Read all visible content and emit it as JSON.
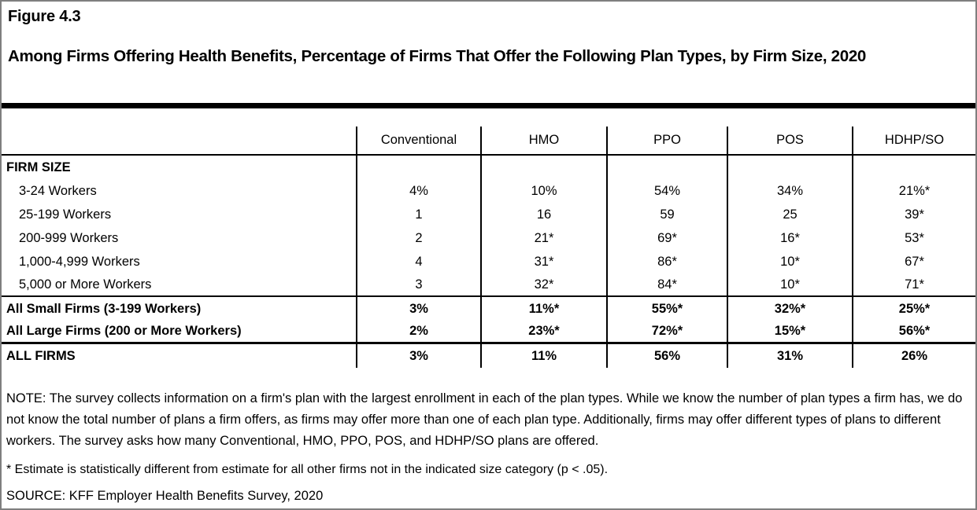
{
  "figure": {
    "number": "Figure 4.3",
    "title": "Among Firms Offering Health Benefits, Percentage of Firms That Offer the Following Plan Types, by Firm Size, 2020"
  },
  "table": {
    "columns": [
      "Conventional",
      "HMO",
      "PPO",
      "POS",
      "HDHP/SO"
    ],
    "section_header": "FIRM SIZE",
    "rows": [
      {
        "label": "3-24 Workers",
        "values": [
          "4%",
          "10%",
          "54%",
          "34%",
          "21%*"
        ]
      },
      {
        "label": "25-199 Workers",
        "values": [
          "1",
          "16",
          "59",
          "25",
          "39*"
        ]
      },
      {
        "label": "200-999 Workers",
        "values": [
          "2",
          "21*",
          "69*",
          "16*",
          "53*"
        ]
      },
      {
        "label": "1,000-4,999 Workers",
        "values": [
          "4",
          "31*",
          "86*",
          "10*",
          "67*"
        ]
      },
      {
        "label": "5,000 or More Workers",
        "values": [
          "3",
          "32*",
          "84*",
          "10*",
          "71*"
        ]
      },
      {
        "label": "All Small Firms (3-199 Workers)",
        "values": [
          "3%",
          "11%*",
          "55%*",
          "32%*",
          "25%*"
        ]
      },
      {
        "label": "All Large Firms (200 or More Workers)",
        "values": [
          "2%",
          "23%*",
          "72%*",
          "15%*",
          "56%*"
        ]
      },
      {
        "label": "ALL FIRMS",
        "values": [
          "3%",
          "11%",
          "56%",
          "31%",
          "26%"
        ]
      }
    ]
  },
  "notes": {
    "note": "NOTE: The survey collects information on a firm's plan with the largest enrollment in each of the plan types. While we know the number of plan types a firm has, we do not know the total number of plans a firm offers, as firms may offer more than one of each plan type. Additionally, firms may offer different types of plans to different workers. The survey asks how many Conventional, HMO, PPO, POS, and HDHP/SO plans are offered.",
    "footnote": "* Estimate is statistically different from estimate for all other firms not in the indicated size category (p < .05).",
    "source": "SOURCE: KFF Employer Health Benefits Survey, 2020"
  },
  "colors": {
    "page_border": "#7f7f7f",
    "rule": "#000000",
    "text": "#000000",
    "background": "#ffffff"
  }
}
